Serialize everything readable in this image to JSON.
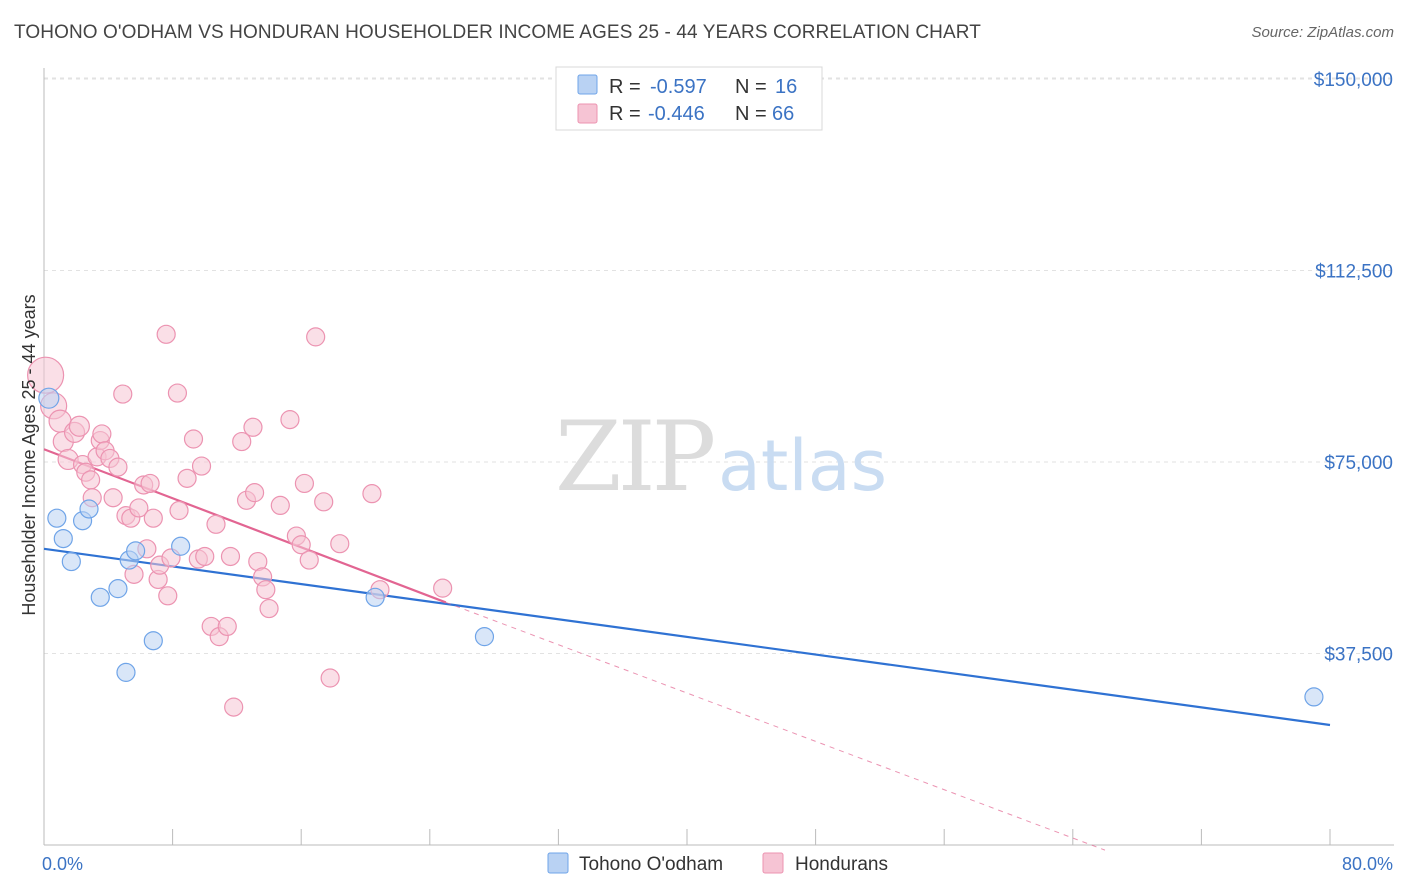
{
  "chart_data": {
    "type": "scatter",
    "title": "TOHONO O'ODHAM VS HONDURAN HOUSEHOLDER INCOME AGES 25 - 44 YEARS CORRELATION CHART",
    "source": "Source: ZipAtlas.com",
    "xlabel": "",
    "ylabel": "Householder Income Ages 25 - 44 years",
    "xlim": [
      0,
      80
    ],
    "ylim": [
      0,
      155000
    ],
    "x_tick_labels": [
      "0.0%",
      "80.0%"
    ],
    "y_ticks": [
      37500,
      75000,
      112500,
      150000
    ],
    "y_tick_labels": [
      "$37,500",
      "$75,000",
      "$112,500",
      "$150,000"
    ],
    "grid": true,
    "watermark": "ZIPatlas",
    "stats": [
      {
        "r_label": "R =",
        "r": "-0.597",
        "n_label": "N =",
        "n": "16"
      },
      {
        "r_label": "R =",
        "r": "-0.446",
        "n_label": "N =",
        "n": "66"
      }
    ],
    "series": [
      {
        "name": "Tohono O'odham",
        "color": "#6fa4e8",
        "fill": "#b9d2f3",
        "line_color": "#2f72d3",
        "trend": {
          "x": [
            0,
            80
          ],
          "y": [
            58000,
            23500
          ]
        },
        "points": [
          {
            "x": 0.3,
            "y": 87500,
            "s": 10
          },
          {
            "x": 0.8,
            "y": 64000,
            "s": 9
          },
          {
            "x": 1.2,
            "y": 60000,
            "s": 9
          },
          {
            "x": 1.7,
            "y": 55500,
            "s": 9
          },
          {
            "x": 2.4,
            "y": 63500,
            "s": 9
          },
          {
            "x": 2.8,
            "y": 65800,
            "s": 9
          },
          {
            "x": 3.5,
            "y": 48500,
            "s": 9
          },
          {
            "x": 4.6,
            "y": 50200,
            "s": 9
          },
          {
            "x": 5.3,
            "y": 55800,
            "s": 9
          },
          {
            "x": 5.7,
            "y": 57600,
            "s": 9
          },
          {
            "x": 5.1,
            "y": 33800,
            "s": 9
          },
          {
            "x": 6.8,
            "y": 40000,
            "s": 9
          },
          {
            "x": 8.5,
            "y": 58500,
            "s": 9
          },
          {
            "x": 20.6,
            "y": 48500,
            "s": 9
          },
          {
            "x": 27.4,
            "y": 40800,
            "s": 9
          },
          {
            "x": 79.0,
            "y": 29000,
            "s": 9
          }
        ]
      },
      {
        "name": "Hondurans",
        "color": "#ec93b1",
        "fill": "#f6c4d4",
        "line_color": "#e26592",
        "trend": {
          "x": [
            0,
            25
          ],
          "y": [
            77500,
            47500
          ]
        },
        "trend_ext": {
          "x": [
            25,
            66
          ],
          "y": [
            47500,
            -1000
          ]
        },
        "points": [
          {
            "x": 0.1,
            "y": 92000,
            "s": 18
          },
          {
            "x": 0.6,
            "y": 86000,
            "s": 13
          },
          {
            "x": 1.0,
            "y": 83000,
            "s": 11
          },
          {
            "x": 1.2,
            "y": 79000,
            "s": 10
          },
          {
            "x": 1.5,
            "y": 75500,
            "s": 10
          },
          {
            "x": 1.9,
            "y": 80800,
            "s": 10
          },
          {
            "x": 2.2,
            "y": 82000,
            "s": 10
          },
          {
            "x": 2.4,
            "y": 74500,
            "s": 9
          },
          {
            "x": 2.6,
            "y": 73000,
            "s": 9
          },
          {
            "x": 2.9,
            "y": 71500,
            "s": 9
          },
          {
            "x": 3.0,
            "y": 68000,
            "s": 9
          },
          {
            "x": 3.3,
            "y": 76000,
            "s": 9
          },
          {
            "x": 3.5,
            "y": 79200,
            "s": 9
          },
          {
            "x": 3.6,
            "y": 80500,
            "s": 9
          },
          {
            "x": 3.8,
            "y": 77200,
            "s": 9
          },
          {
            "x": 4.1,
            "y": 75700,
            "s": 9
          },
          {
            "x": 4.3,
            "y": 68000,
            "s": 9
          },
          {
            "x": 4.6,
            "y": 74000,
            "s": 9
          },
          {
            "x": 4.9,
            "y": 88300,
            "s": 9
          },
          {
            "x": 5.1,
            "y": 64500,
            "s": 9
          },
          {
            "x": 5.4,
            "y": 64000,
            "s": 9
          },
          {
            "x": 5.6,
            "y": 53000,
            "s": 9
          },
          {
            "x": 5.9,
            "y": 66000,
            "s": 9
          },
          {
            "x": 6.2,
            "y": 70500,
            "s": 9
          },
          {
            "x": 6.4,
            "y": 58000,
            "s": 9
          },
          {
            "x": 6.6,
            "y": 70800,
            "s": 9
          },
          {
            "x": 6.8,
            "y": 64000,
            "s": 9
          },
          {
            "x": 7.1,
            "y": 52000,
            "s": 9
          },
          {
            "x": 7.2,
            "y": 54800,
            "s": 9
          },
          {
            "x": 7.6,
            "y": 100000,
            "s": 9
          },
          {
            "x": 7.7,
            "y": 48800,
            "s": 9
          },
          {
            "x": 7.9,
            "y": 56200,
            "s": 9
          },
          {
            "x": 8.3,
            "y": 88500,
            "s": 9
          },
          {
            "x": 8.4,
            "y": 65500,
            "s": 9
          },
          {
            "x": 8.9,
            "y": 71800,
            "s": 9
          },
          {
            "x": 9.3,
            "y": 79500,
            "s": 9
          },
          {
            "x": 9.6,
            "y": 56000,
            "s": 9
          },
          {
            "x": 9.8,
            "y": 74200,
            "s": 9
          },
          {
            "x": 10.0,
            "y": 56500,
            "s": 9
          },
          {
            "x": 10.4,
            "y": 42800,
            "s": 9
          },
          {
            "x": 10.7,
            "y": 62800,
            "s": 9
          },
          {
            "x": 10.9,
            "y": 40800,
            "s": 9
          },
          {
            "x": 11.4,
            "y": 42800,
            "s": 9
          },
          {
            "x": 11.6,
            "y": 56500,
            "s": 9
          },
          {
            "x": 11.8,
            "y": 27000,
            "s": 9
          },
          {
            "x": 12.3,
            "y": 79000,
            "s": 9
          },
          {
            "x": 12.6,
            "y": 67500,
            "s": 9
          },
          {
            "x": 13.0,
            "y": 81800,
            "s": 9
          },
          {
            "x": 13.1,
            "y": 69000,
            "s": 9
          },
          {
            "x": 13.3,
            "y": 55500,
            "s": 9
          },
          {
            "x": 13.6,
            "y": 52500,
            "s": 9
          },
          {
            "x": 13.8,
            "y": 50000,
            "s": 9
          },
          {
            "x": 14.0,
            "y": 46300,
            "s": 9
          },
          {
            "x": 14.7,
            "y": 66500,
            "s": 9
          },
          {
            "x": 15.3,
            "y": 83300,
            "s": 9
          },
          {
            "x": 15.7,
            "y": 60500,
            "s": 9
          },
          {
            "x": 16.0,
            "y": 58800,
            "s": 9
          },
          {
            "x": 16.2,
            "y": 70800,
            "s": 9
          },
          {
            "x": 16.5,
            "y": 55800,
            "s": 9
          },
          {
            "x": 16.9,
            "y": 99500,
            "s": 9
          },
          {
            "x": 17.4,
            "y": 67200,
            "s": 9
          },
          {
            "x": 17.8,
            "y": 32700,
            "s": 9
          },
          {
            "x": 18.4,
            "y": 59000,
            "s": 9
          },
          {
            "x": 20.4,
            "y": 68800,
            "s": 9
          },
          {
            "x": 20.9,
            "y": 50000,
            "s": 9
          },
          {
            "x": 24.8,
            "y": 50300,
            "s": 9
          }
        ]
      }
    ]
  }
}
